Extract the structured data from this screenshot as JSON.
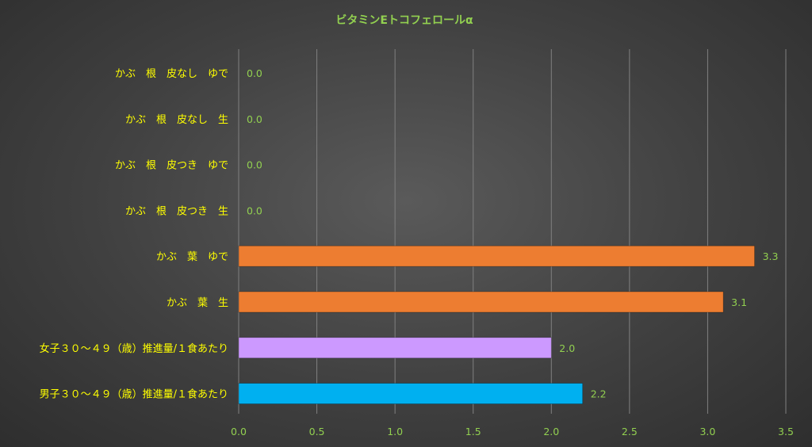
{
  "chart_data": {
    "type": "bar",
    "orientation": "horizontal",
    "title": "ビタミンEトコフェロールα",
    "xlabel": "",
    "ylabel": "",
    "xlim": [
      0,
      3.5
    ],
    "ticks": [
      "0.0",
      "0.5",
      "1.0",
      "1.5",
      "2.0",
      "2.5",
      "3.0",
      "3.5"
    ],
    "grid": true,
    "legend": "none",
    "categories": [
      "かぶ　根　皮なし　ゆで",
      "かぶ　根　皮なし　生",
      "かぶ　根　皮つき　ゆで",
      "かぶ　根　皮つき　生",
      "かぶ　葉　ゆで",
      "かぶ　葉　生",
      "女子３０～４９（歳）推進量/１食あたり",
      "男子３０～４９（歳）推進量/１食あたり"
    ],
    "values": [
      0.0,
      0.0,
      0.0,
      0.0,
      3.3,
      3.1,
      2.0,
      2.2
    ],
    "value_labels": [
      "0.0",
      "0.0",
      "0.0",
      "0.0",
      "3.3",
      "3.1",
      "2.0",
      "2.2"
    ],
    "colors": [
      "#ed7d31",
      "#ed7d31",
      "#ed7d31",
      "#ed7d31",
      "#ed7d31",
      "#ed7d31",
      "#cc99ff",
      "#00b0f0"
    ]
  },
  "style": {
    "title_color": "#92d050",
    "category_label_color": "#ffff00",
    "value_label_color": "#92d050",
    "tick_label_color": "#92d050",
    "gridline_color": "#808080"
  }
}
